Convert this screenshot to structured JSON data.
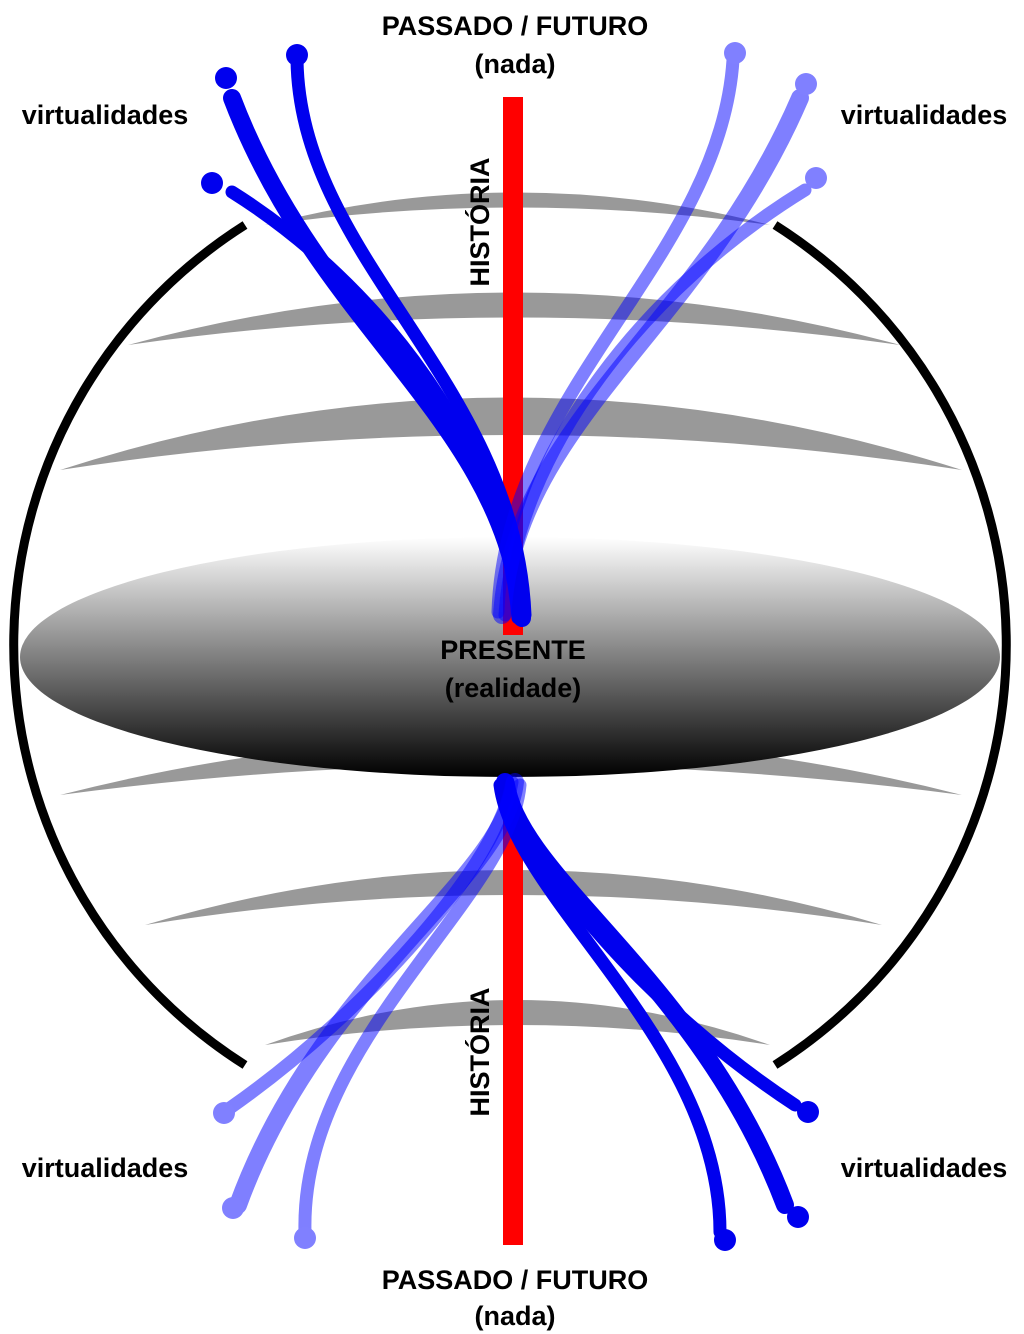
{
  "top_label": {
    "title": "PASSADO / FUTURO",
    "subtitle": "(nada)"
  },
  "virtual_labels": [
    "virtualidades",
    "virtualidades",
    "virtualidades",
    "virtualidades"
  ],
  "history_labels": [
    "HISTÓRIA",
    "HISTÓRIA"
  ],
  "center_label": {
    "title": "PRESENTE",
    "subtitle": "(realidade)"
  },
  "bottom_label": {
    "title": "PASSADO / FUTURO",
    "subtitle": "(nada)"
  }
}
